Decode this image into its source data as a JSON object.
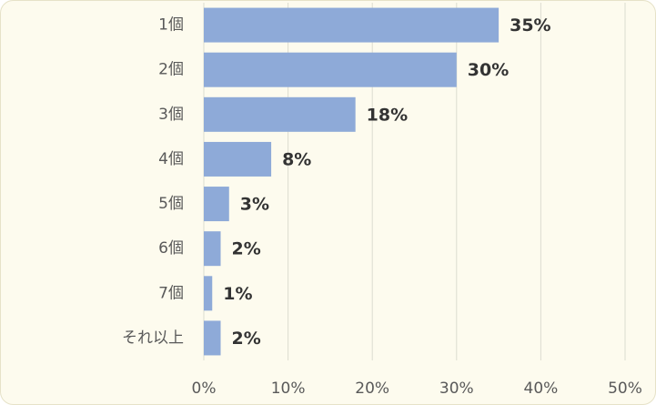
{
  "chart_data": {
    "type": "barh",
    "categories": [
      "1個",
      "2個",
      "3個",
      "4個",
      "5個",
      "6個",
      "7個",
      "それ以上"
    ],
    "values": [
      35,
      30,
      18,
      8,
      3,
      2,
      1,
      2
    ],
    "value_labels": [
      "35%",
      "30%",
      "18%",
      "8%",
      "3%",
      "2%",
      "1%",
      "2%"
    ],
    "color": "#8eaad8",
    "xlim": [
      0,
      50
    ],
    "xticks": [
      {
        "value": 0,
        "label": "0%"
      },
      {
        "value": 10,
        "label": "10%"
      },
      {
        "value": 20,
        "label": "20%"
      },
      {
        "value": 30,
        "label": "30%"
      },
      {
        "value": 40,
        "label": "40%"
      },
      {
        "value": 50,
        "label": "50%"
      }
    ],
    "grid": true
  }
}
